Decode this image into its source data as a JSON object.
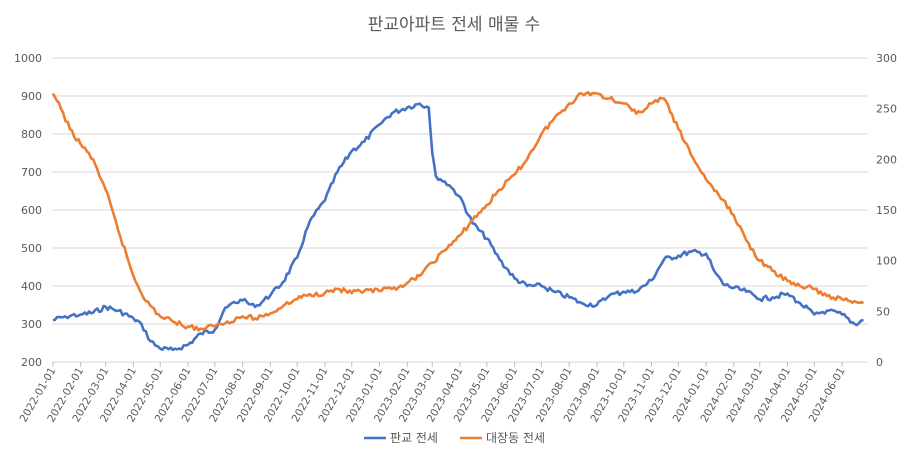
{
  "chart_data": {
    "type": "line",
    "title": "판교아파트 전세 매물 수",
    "y_left": {
      "ylim": [
        200,
        1000
      ],
      "ticks": [
        "200",
        "300",
        "400",
        "500",
        "600",
        "700",
        "800",
        "900",
        "1000"
      ]
    },
    "y_right": {
      "ylim": [
        0,
        300
      ],
      "ticks": [
        "0",
        "50",
        "100",
        "150",
        "200",
        "250",
        "300"
      ]
    },
    "x_ticks": [
      "2022-01-01",
      "2022-02-01",
      "2022-03-01",
      "2022-04-01",
      "2022-05-01",
      "2022-06-01",
      "2022-07-01",
      "2022-08-01",
      "2022-09-01",
      "2022-10-01",
      "2022-11-01",
      "2022-12-01",
      "2023-01-01",
      "2023-02-01",
      "2023-03-01",
      "2023-04-01",
      "2023-05-01",
      "2023-06-01",
      "2023-07-01",
      "2023-08-01",
      "2023-09-01",
      "2023-10-01",
      "2023-11-01",
      "2023-12-01",
      "2024-01-01",
      "2024-02-01",
      "2024-03-01",
      "2024-04-01",
      "2024-05-01",
      "2024-06-01"
    ],
    "grid": true,
    "legend_position": "bottom",
    "series": [
      {
        "name": "판교 전세",
        "axis": "left",
        "color": "#4472C4",
        "points": [
          [
            "2022-01-01",
            310
          ],
          [
            "2022-01-15",
            320
          ],
          [
            "2022-02-01",
            325
          ],
          [
            "2022-02-15",
            330
          ],
          [
            "2022-03-01",
            345
          ],
          [
            "2022-03-15",
            335
          ],
          [
            "2022-04-01",
            315
          ],
          [
            "2022-04-10",
            300
          ],
          [
            "2022-04-20",
            255
          ],
          [
            "2022-05-01",
            235
          ],
          [
            "2022-05-15",
            232
          ],
          [
            "2022-06-01",
            245
          ],
          [
            "2022-06-15",
            275
          ],
          [
            "2022-07-01",
            285
          ],
          [
            "2022-07-10",
            330
          ],
          [
            "2022-07-20",
            355
          ],
          [
            "2022-08-01",
            362
          ],
          [
            "2022-08-15",
            345
          ],
          [
            "2022-09-01",
            375
          ],
          [
            "2022-09-15",
            410
          ],
          [
            "2022-10-01",
            475
          ],
          [
            "2022-10-15",
            570
          ],
          [
            "2022-11-01",
            625
          ],
          [
            "2022-11-15",
            700
          ],
          [
            "2022-12-01",
            755
          ],
          [
            "2022-12-15",
            780
          ],
          [
            "2023-01-01",
            825
          ],
          [
            "2023-01-15",
            855
          ],
          [
            "2023-02-01",
            870
          ],
          [
            "2023-02-15",
            880
          ],
          [
            "2023-02-25",
            870
          ],
          [
            "2023-03-01",
            750
          ],
          [
            "2023-03-05",
            690
          ],
          [
            "2023-03-20",
            665
          ],
          [
            "2023-04-01",
            635
          ],
          [
            "2023-04-15",
            565
          ],
          [
            "2023-05-01",
            525
          ],
          [
            "2023-05-15",
            470
          ],
          [
            "2023-06-01",
            420
          ],
          [
            "2023-06-15",
            400
          ],
          [
            "2023-07-01",
            400
          ],
          [
            "2023-07-15",
            385
          ],
          [
            "2023-08-01",
            370
          ],
          [
            "2023-08-15",
            355
          ],
          [
            "2023-09-01",
            350
          ],
          [
            "2023-09-15",
            375
          ],
          [
            "2023-10-01",
            385
          ],
          [
            "2023-10-15",
            385
          ],
          [
            "2023-11-01",
            415
          ],
          [
            "2023-11-15",
            470
          ],
          [
            "2023-12-01",
            480
          ],
          [
            "2023-12-15",
            490
          ],
          [
            "2024-01-01",
            485
          ],
          [
            "2024-01-10",
            440
          ],
          [
            "2024-01-20",
            405
          ],
          [
            "2024-02-01",
            395
          ],
          [
            "2024-02-15",
            385
          ],
          [
            "2024-03-01",
            365
          ],
          [
            "2024-03-15",
            370
          ],
          [
            "2024-04-01",
            380
          ],
          [
            "2024-04-15",
            355
          ],
          [
            "2024-05-01",
            325
          ],
          [
            "2024-05-15",
            335
          ],
          [
            "2024-06-01",
            325
          ],
          [
            "2024-06-15",
            300
          ],
          [
            "2024-06-25",
            310
          ]
        ]
      },
      {
        "name": "대장동 전세",
        "axis": "right",
        "color": "#ED7D31",
        "points": [
          [
            "2022-01-01",
            265
          ],
          [
            "2022-01-10",
            250
          ],
          [
            "2022-01-20",
            230
          ],
          [
            "2022-02-01",
            215
          ],
          [
            "2022-02-15",
            200
          ],
          [
            "2022-03-01",
            170
          ],
          [
            "2022-03-15",
            130
          ],
          [
            "2022-04-01",
            85
          ],
          [
            "2022-04-15",
            60
          ],
          [
            "2022-05-01",
            45
          ],
          [
            "2022-05-15",
            40
          ],
          [
            "2022-06-01",
            35
          ],
          [
            "2022-06-15",
            33
          ],
          [
            "2022-07-01",
            35
          ],
          [
            "2022-07-15",
            40
          ],
          [
            "2022-08-01",
            45
          ],
          [
            "2022-08-15",
            43
          ],
          [
            "2022-09-01",
            48
          ],
          [
            "2022-09-15",
            55
          ],
          [
            "2022-10-01",
            62
          ],
          [
            "2022-10-15",
            67
          ],
          [
            "2022-11-01",
            68
          ],
          [
            "2022-11-15",
            72
          ],
          [
            "2022-12-01",
            68
          ],
          [
            "2022-12-15",
            70
          ],
          [
            "2023-01-01",
            70
          ],
          [
            "2023-01-15",
            72
          ],
          [
            "2023-02-01",
            78
          ],
          [
            "2023-02-15",
            85
          ],
          [
            "2023-03-01",
            98
          ],
          [
            "2023-03-15",
            110
          ],
          [
            "2023-04-01",
            125
          ],
          [
            "2023-04-15",
            140
          ],
          [
            "2023-05-01",
            155
          ],
          [
            "2023-05-15",
            170
          ],
          [
            "2023-06-01",
            185
          ],
          [
            "2023-06-15",
            200
          ],
          [
            "2023-07-01",
            225
          ],
          [
            "2023-07-15",
            240
          ],
          [
            "2023-08-01",
            255
          ],
          [
            "2023-08-15",
            265
          ],
          [
            "2023-09-01",
            265
          ],
          [
            "2023-09-15",
            260
          ],
          [
            "2023-10-01",
            255
          ],
          [
            "2023-10-15",
            245
          ],
          [
            "2023-11-01",
            255
          ],
          [
            "2023-11-15",
            260
          ],
          [
            "2023-12-01",
            230
          ],
          [
            "2023-12-15",
            205
          ],
          [
            "2024-01-01",
            180
          ],
          [
            "2024-01-15",
            165
          ],
          [
            "2024-02-01",
            145
          ],
          [
            "2024-02-15",
            120
          ],
          [
            "2024-03-01",
            100
          ],
          [
            "2024-03-15",
            90
          ],
          [
            "2024-04-01",
            80
          ],
          [
            "2024-04-15",
            75
          ],
          [
            "2024-05-01",
            72
          ],
          [
            "2024-05-15",
            65
          ],
          [
            "2024-06-01",
            62
          ],
          [
            "2024-06-15",
            60
          ],
          [
            "2024-06-25",
            58
          ]
        ]
      }
    ]
  }
}
